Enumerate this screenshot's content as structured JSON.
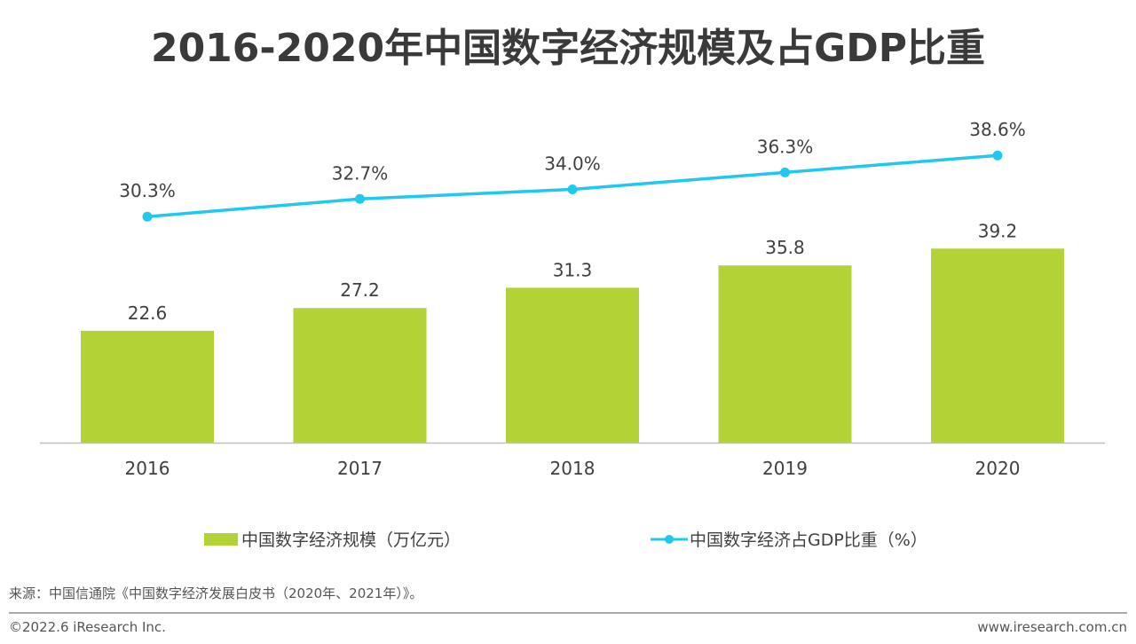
{
  "chart_data": {
    "type": "bar+line",
    "title": "2016-2020年中国数字经济规模及占GDP比重",
    "categories": [
      "2016",
      "2017",
      "2018",
      "2019",
      "2020"
    ],
    "series": [
      {
        "name": "中国数字经济规模（万亿元）",
        "type": "bar",
        "color": "#b2d235",
        "values": [
          22.6,
          27.2,
          31.3,
          35.8,
          39.2
        ],
        "labels": [
          "22.6",
          "27.2",
          "31.3",
          "35.8",
          "39.2"
        ]
      },
      {
        "name": "中国数字经济占GDP比重（%）",
        "type": "line",
        "color": "#1fc8f0",
        "values": [
          30.3,
          32.7,
          34.0,
          36.3,
          38.6
        ],
        "labels": [
          "30.3%",
          "32.7%",
          "34.0%",
          "36.3%",
          "38.6%"
        ]
      }
    ],
    "legend_position": "bottom",
    "grid": false
  },
  "footer": {
    "source": "来源：中国信通院《中国数字经济发展白皮书（2020年、2021年）》。",
    "copyright": "©2022.6 iResearch Inc.",
    "website": "www.iresearch.com.cn"
  }
}
